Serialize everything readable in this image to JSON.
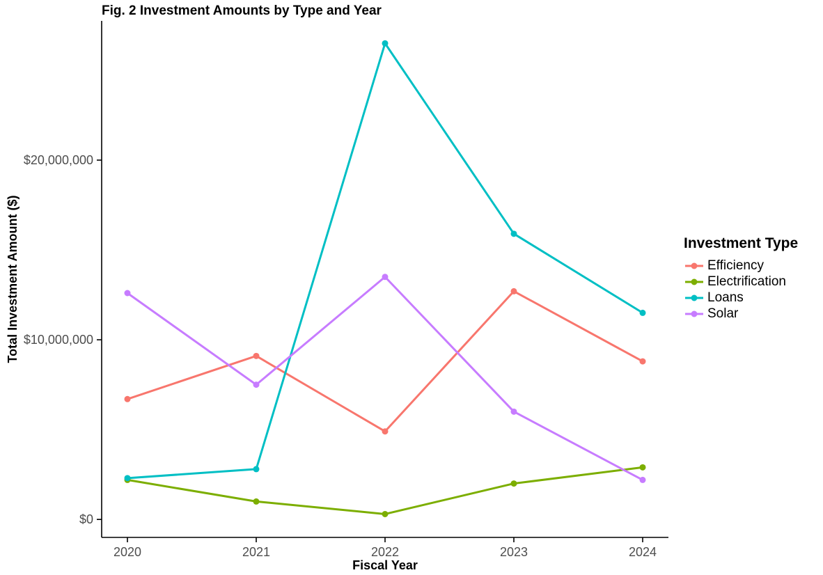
{
  "chart_data": {
    "type": "line",
    "title": "Fig. 2 Investment Amounts by Type and Year",
    "xlabel": "Fiscal Year",
    "ylabel": "Total Investment Amount ($)",
    "legend_title": "Investment Type",
    "legend_position": "right",
    "grid": false,
    "categories": [
      "2020",
      "2021",
      "2022",
      "2023",
      "2024"
    ],
    "series": [
      {
        "name": "Efficiency",
        "color": "#F8766D",
        "values": [
          6700000,
          9100000,
          4900000,
          12700000,
          8800000
        ]
      },
      {
        "name": "Electrification",
        "color": "#7CAE00",
        "values": [
          2200000,
          1000000,
          300000,
          2000000,
          2900000
        ]
      },
      {
        "name": "Loans",
        "color": "#00BFC4",
        "values": [
          2300000,
          2800000,
          26500000,
          15900000,
          11500000
        ]
      },
      {
        "name": "Solar",
        "color": "#C77CFF",
        "values": [
          12600000,
          7500000,
          13500000,
          6000000,
          2200000
        ]
      }
    ],
    "y_axis": {
      "ticks": [
        {
          "value": 0,
          "label": "$0"
        },
        {
          "value": 10000000,
          "label": "$10,000,000"
        },
        {
          "value": 20000000,
          "label": "$20,000,000"
        }
      ],
      "range": [
        -1000000,
        27750000
      ]
    },
    "colors": {
      "tick_text": "#4D4D4D",
      "axis_line": "#000000"
    }
  }
}
